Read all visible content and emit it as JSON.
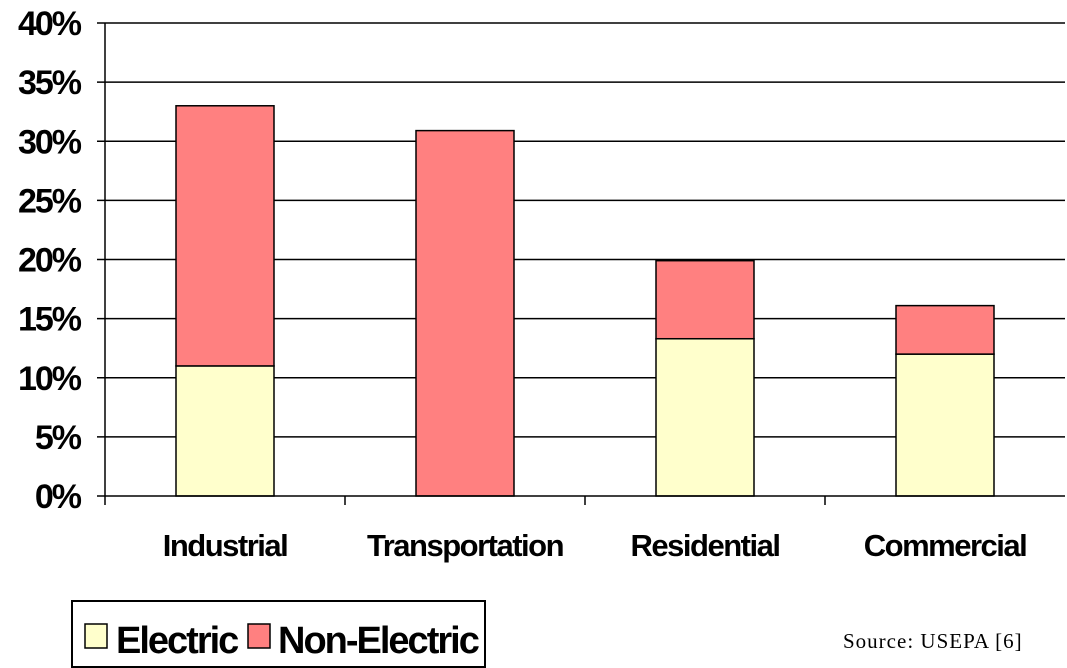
{
  "chart_data": {
    "type": "bar",
    "stacked": true,
    "categories": [
      "Industrial",
      "Transportation",
      "Residential",
      "Commercial"
    ],
    "series": [
      {
        "name": "Electric",
        "values": [
          11,
          0,
          13.3,
          12
        ],
        "color": "#FFFFCC"
      },
      {
        "name": "Non-Electric",
        "values": [
          22,
          30.9,
          6.6,
          4.1
        ],
        "color": "#FF8080"
      }
    ],
    "ylim": [
      0,
      40
    ],
    "yticks": [
      0,
      5,
      10,
      15,
      20,
      25,
      30,
      35,
      40
    ],
    "ytick_labels": [
      "0%",
      "5%",
      "10%",
      "15%",
      "20%",
      "25%",
      "30%",
      "35%",
      "40%"
    ],
    "grid": true,
    "legend_position": "bottom-left",
    "xlabel": "",
    "ylabel": "",
    "title": ""
  },
  "source_note": "Source: USEPA [6]"
}
